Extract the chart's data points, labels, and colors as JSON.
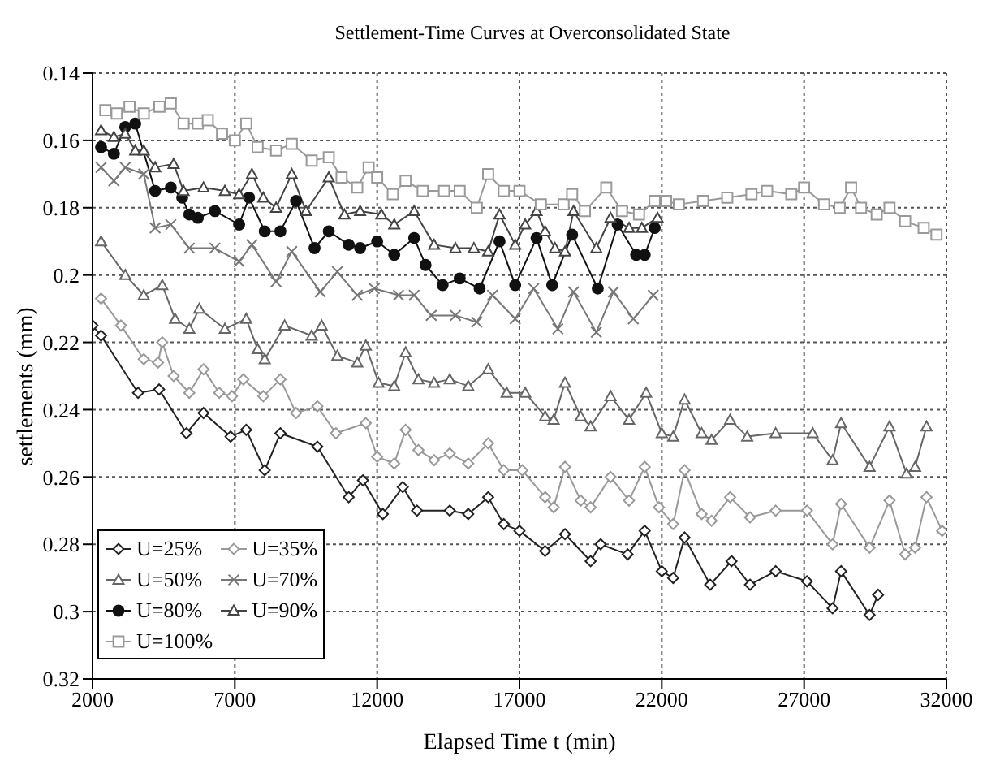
{
  "chart_data": {
    "type": "line",
    "title": "Settlement-Time Curves at Overconsolidated State",
    "xlabel": "Elapsed Time t (min)",
    "ylabel": "settlements  (mm)",
    "xlim": [
      2000,
      32000
    ],
    "xticks": [
      2000,
      7000,
      12000,
      17000,
      22000,
      27000,
      32000
    ],
    "ylim": [
      0.32,
      0.14
    ],
    "yticks": [
      0.14,
      0.16,
      0.18,
      0.2,
      0.22,
      0.24,
      0.26,
      0.28,
      0.3,
      0.32
    ],
    "grid": true,
    "legend": "bottom left",
    "line_style": "solid",
    "series": [
      {
        "name": "U=25%",
        "color": "#222222",
        "marker": "diamond",
        "x": [
          2000,
          2300,
          3600,
          4340,
          5300,
          5900,
          6850,
          7400,
          8050,
          8600,
          9900,
          11000,
          11500,
          12200,
          12900,
          13400,
          14550,
          15200,
          15900,
          16450,
          17000,
          17900,
          18600,
          19500,
          19850,
          20800,
          21400,
          22000,
          22400,
          22800,
          23700,
          24450,
          25100,
          26000,
          27100,
          28000,
          28300,
          29300,
          29600
        ],
        "values": [
          0.215,
          0.218,
          0.235,
          0.234,
          0.247,
          0.241,
          0.248,
          0.246,
          0.258,
          0.247,
          0.251,
          0.266,
          0.261,
          0.271,
          0.263,
          0.27,
          0.27,
          0.271,
          0.266,
          0.274,
          0.276,
          0.282,
          0.277,
          0.285,
          0.28,
          0.283,
          0.276,
          0.288,
          0.29,
          0.278,
          0.292,
          0.285,
          0.292,
          0.288,
          0.291,
          0.299,
          0.288,
          0.301,
          0.295
        ]
      },
      {
        "name": "U=35%",
        "color": "#999999",
        "marker": "diamond",
        "x": [
          2300,
          3000,
          3800,
          4300,
          4450,
          4850,
          5400,
          5900,
          6450,
          6900,
          7300,
          8000,
          8600,
          9150,
          9900,
          10550,
          11600,
          12000,
          12600,
          13000,
          13450,
          14000,
          14550,
          15200,
          15900,
          16450,
          17100,
          17900,
          18200,
          18600,
          19150,
          19500,
          20200,
          20850,
          21400,
          21900,
          22400,
          22800,
          23400,
          23750,
          24400,
          25100,
          26000,
          27100,
          28000,
          28300,
          29300,
          30000,
          30550,
          30900,
          31300,
          31850
        ],
        "values": [
          0.207,
          0.215,
          0.225,
          0.226,
          0.22,
          0.23,
          0.235,
          0.228,
          0.235,
          0.236,
          0.231,
          0.236,
          0.231,
          0.241,
          0.239,
          0.247,
          0.244,
          0.254,
          0.256,
          0.246,
          0.252,
          0.255,
          0.253,
          0.256,
          0.25,
          0.258,
          0.258,
          0.266,
          0.269,
          0.257,
          0.267,
          0.269,
          0.26,
          0.267,
          0.257,
          0.269,
          0.274,
          0.258,
          0.271,
          0.273,
          0.266,
          0.272,
          0.27,
          0.27,
          0.28,
          0.268,
          0.281,
          0.267,
          0.283,
          0.281,
          0.266,
          0.276
        ]
      },
      {
        "name": "U=50%",
        "color": "#666666",
        "marker": "triangle",
        "x": [
          2300,
          3150,
          3800,
          4450,
          4900,
          5400,
          5750,
          6650,
          7400,
          7800,
          8050,
          8750,
          9700,
          10050,
          10600,
          11300,
          11600,
          12050,
          12600,
          13000,
          13450,
          14000,
          14550,
          15200,
          15900,
          16550,
          17200,
          17900,
          18200,
          18600,
          19150,
          19500,
          20200,
          20850,
          21450,
          22000,
          22400,
          22800,
          23400,
          23750,
          24400,
          25000,
          26000,
          27300,
          28000,
          28300,
          29300,
          30000,
          30600,
          30900,
          31300
        ],
        "values": [
          0.19,
          0.2,
          0.206,
          0.203,
          0.213,
          0.216,
          0.21,
          0.216,
          0.213,
          0.222,
          0.225,
          0.215,
          0.218,
          0.215,
          0.224,
          0.226,
          0.221,
          0.232,
          0.233,
          0.223,
          0.231,
          0.232,
          0.231,
          0.233,
          0.228,
          0.235,
          0.235,
          0.242,
          0.243,
          0.232,
          0.242,
          0.245,
          0.236,
          0.243,
          0.235,
          0.247,
          0.248,
          0.237,
          0.247,
          0.249,
          0.243,
          0.248,
          0.247,
          0.247,
          0.255,
          0.244,
          0.257,
          0.245,
          0.259,
          0.257,
          0.245
        ]
      },
      {
        "name": "U=70%",
        "color": "#777777",
        "marker": "cross",
        "x": [
          2300,
          2750,
          3150,
          3800,
          4200,
          4750,
          5400,
          6300,
          7150,
          7600,
          8450,
          9000,
          10000,
          10600,
          11300,
          11900,
          12750,
          13300,
          13900,
          14750,
          15500,
          16050,
          16850,
          17500,
          18350,
          18900,
          19700,
          20300,
          21000,
          21700
        ],
        "values": [
          0.168,
          0.172,
          0.168,
          0.17,
          0.186,
          0.185,
          0.192,
          0.192,
          0.196,
          0.191,
          0.202,
          0.193,
          0.205,
          0.199,
          0.206,
          0.204,
          0.206,
          0.206,
          0.212,
          0.212,
          0.214,
          0.206,
          0.213,
          0.204,
          0.216,
          0.205,
          0.217,
          0.205,
          0.213,
          0.206
        ]
      },
      {
        "name": "U=80%",
        "color": "#111111",
        "marker": "circle",
        "x": [
          2300,
          2750,
          3150,
          3500,
          4200,
          4750,
          5150,
          5400,
          5700,
          6300,
          7150,
          7500,
          8050,
          8600,
          9150,
          9800,
          10300,
          11000,
          11400,
          12000,
          12600,
          13300,
          13700,
          14300,
          14900,
          15600,
          16300,
          16850,
          17600,
          18150,
          18850,
          19750,
          20450,
          21100,
          21400,
          21750
        ],
        "values": [
          0.162,
          0.164,
          0.156,
          0.155,
          0.175,
          0.174,
          0.177,
          0.182,
          0.183,
          0.181,
          0.185,
          0.177,
          0.187,
          0.187,
          0.178,
          0.192,
          0.187,
          0.191,
          0.192,
          0.19,
          0.194,
          0.189,
          0.197,
          0.203,
          0.201,
          0.204,
          0.19,
          0.203,
          0.189,
          0.203,
          0.188,
          0.204,
          0.185,
          0.194,
          0.194,
          0.186
        ]
      },
      {
        "name": "U=90%",
        "color": "#444444",
        "marker": "triangle",
        "x": [
          2300,
          2750,
          3150,
          3500,
          3800,
          4200,
          4850,
          5200,
          5900,
          6650,
          7150,
          7600,
          8000,
          8450,
          9000,
          9500,
          10300,
          10850,
          11400,
          12150,
          12600,
          13300,
          14000,
          14750,
          15400,
          15900,
          16300,
          16850,
          17200,
          17600,
          17900,
          18250,
          18600,
          18900,
          19700,
          20200,
          20850,
          21300,
          21850
        ],
        "values": [
          0.157,
          0.159,
          0.158,
          0.163,
          0.163,
          0.168,
          0.167,
          0.175,
          0.174,
          0.175,
          0.176,
          0.17,
          0.177,
          0.18,
          0.17,
          0.181,
          0.171,
          0.182,
          0.181,
          0.182,
          0.185,
          0.181,
          0.191,
          0.192,
          0.192,
          0.193,
          0.182,
          0.191,
          0.185,
          0.181,
          0.187,
          0.192,
          0.193,
          0.181,
          0.192,
          0.183,
          0.186,
          0.186,
          0.183
        ]
      },
      {
        "name": "U=100%",
        "color": "#999999",
        "marker": "square",
        "x": [
          2450,
          2850,
          3300,
          3800,
          4350,
          4750,
          5200,
          5700,
          6050,
          6550,
          7000,
          7400,
          7800,
          8450,
          9000,
          9700,
          10300,
          10750,
          11300,
          11700,
          12000,
          12550,
          13000,
          13600,
          14350,
          14900,
          15500,
          15900,
          16450,
          17000,
          17750,
          18550,
          18850,
          19300,
          20050,
          20600,
          21200,
          21750,
          22150,
          22600,
          23450,
          24300,
          25150,
          25700,
          26550,
          27000,
          27700,
          28250,
          28650,
          29000,
          29550,
          30000,
          30550,
          31200,
          31650
        ],
        "values": [
          0.151,
          0.152,
          0.15,
          0.152,
          0.15,
          0.149,
          0.155,
          0.155,
          0.154,
          0.158,
          0.16,
          0.155,
          0.162,
          0.163,
          0.161,
          0.166,
          0.165,
          0.171,
          0.174,
          0.168,
          0.171,
          0.176,
          0.172,
          0.175,
          0.175,
          0.175,
          0.18,
          0.17,
          0.175,
          0.175,
          0.179,
          0.179,
          0.176,
          0.181,
          0.174,
          0.181,
          0.182,
          0.178,
          0.178,
          0.179,
          0.178,
          0.177,
          0.176,
          0.175,
          0.176,
          0.174,
          0.179,
          0.18,
          0.174,
          0.18,
          0.182,
          0.18,
          0.184,
          0.186,
          0.188
        ]
      }
    ]
  }
}
